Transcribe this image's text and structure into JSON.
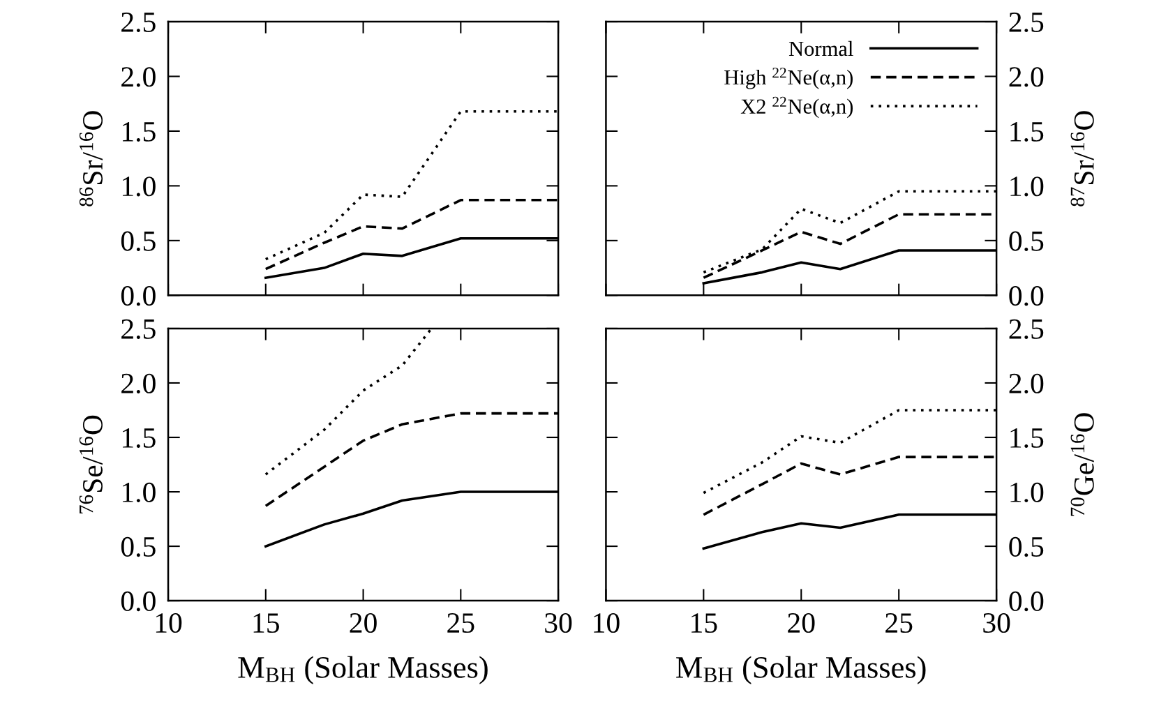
{
  "chart_data": [
    {
      "type": "line",
      "ylabel": "$^{86}$Sr/$^{16}$O",
      "x": [
        15,
        18,
        20,
        22,
        25,
        30
      ],
      "xlim": [
        10,
        30
      ],
      "xticks": [
        10,
        15,
        20,
        25,
        30
      ],
      "ylim": [
        0,
        2.5
      ],
      "yticks": [
        {
          "value": 0,
          "label": "0.0"
        },
        0.5,
        {
          "value": 1,
          "label": "1.0"
        },
        1.5,
        {
          "value": 2,
          "label": "2.0"
        },
        2.5
      ],
      "tick_labels": "y",
      "grid": false,
      "legend": false,
      "marker": "none",
      "series": [
        {
          "color": "#000000",
          "line_style": "solid",
          "values": [
            0.16,
            0.25,
            0.38,
            0.36,
            0.52,
            0.52
          ]
        },
        {
          "color": "#000000",
          "line_style": "dashed",
          "values": [
            0.24,
            0.48,
            0.63,
            0.61,
            0.87,
            0.87
          ]
        },
        {
          "color": "#000000",
          "line_style": "dotted",
          "values": [
            0.33,
            0.57,
            0.92,
            0.9,
            1.68,
            1.68
          ]
        }
      ]
    },
    {
      "type": "line",
      "ylabel": "$^{87}$Sr/$^{16}$O",
      "x": [
        15,
        18,
        20,
        22,
        25,
        30
      ],
      "xlim": [
        10,
        30
      ],
      "xticks": [
        10,
        15,
        20,
        25,
        30
      ],
      "ylim": [
        0,
        2.5
      ],
      "yticks": [
        {
          "value": 0,
          "label": "0.0"
        },
        0.5,
        {
          "value": 1,
          "label": "1.0"
        },
        1.5,
        {
          "value": 2,
          "label": "2.0"
        },
        2.5
      ],
      "tick_labels": "y",
      "grid": false,
      "legend": "top right",
      "marker": "none",
      "series": [
        {
          "name": "Normal",
          "color": "#000000",
          "line_style": "solid",
          "values": [
            0.11,
            0.21,
            0.3,
            0.24,
            0.41,
            0.41
          ]
        },
        {
          "name": "High $^{22}$Ne(α,n)",
          "color": "#000000",
          "line_style": "dashed",
          "values": [
            0.16,
            0.41,
            0.58,
            0.47,
            0.74,
            0.74
          ]
        },
        {
          "name": "X2 $^{22}$Ne(α,n)",
          "color": "#000000",
          "line_style": "dotted",
          "values": [
            0.21,
            0.42,
            0.79,
            0.66,
            0.95,
            0.95
          ]
        }
      ]
    },
    {
      "type": "line",
      "xlabel": "M$_{BH}$ (Solar Masses)",
      "ylabel": "$^{76}$Se/$^{16}$O",
      "x": [
        15,
        18,
        20,
        22,
        25,
        30
      ],
      "xlim": [
        10,
        30
      ],
      "xticks": [
        10,
        15,
        20,
        25,
        30
      ],
      "ylim": [
        0,
        2.5
      ],
      "yticks": [
        {
          "value": 0,
          "label": "0.0"
        },
        0.5,
        {
          "value": 1,
          "label": "1.0"
        },
        1.5,
        {
          "value": 2,
          "label": "2.0"
        },
        2.5
      ],
      "grid": false,
      "legend": false,
      "marker": "none",
      "series": [
        {
          "color": "#000000",
          "line_style": "solid",
          "values": [
            0.5,
            0.7,
            0.8,
            0.92,
            1.0,
            1.0
          ]
        },
        {
          "color": "#000000",
          "line_style": "dashed",
          "values": [
            0.87,
            1.23,
            1.47,
            1.62,
            1.72,
            1.72
          ]
        },
        {
          "color": "#000000",
          "line_style": "dotted",
          "x": [
            15,
            18,
            20,
            22,
            23.5
          ],
          "values": [
            1.16,
            1.57,
            1.93,
            2.16,
            2.5
          ]
        }
      ]
    },
    {
      "type": "line",
      "xlabel": "M$_{BH}$ (Solar Masses)",
      "ylabel": "$^{70}$Ge/$^{16}$O",
      "x": [
        15,
        18,
        20,
        22,
        25,
        30
      ],
      "xlim": [
        10,
        30
      ],
      "xticks": [
        10,
        15,
        20,
        25,
        30
      ],
      "ylim": [
        0,
        2.5
      ],
      "yticks": [
        {
          "value": 0,
          "label": "0.0"
        },
        0.5,
        {
          "value": 1,
          "label": "1.0"
        },
        1.5,
        {
          "value": 2,
          "label": "2.0"
        },
        2.5
      ],
      "grid": false,
      "legend": false,
      "marker": "none",
      "series": [
        {
          "color": "#000000",
          "line_style": "solid",
          "values": [
            0.48,
            0.63,
            0.71,
            0.67,
            0.79,
            0.79
          ]
        },
        {
          "color": "#000000",
          "line_style": "dashed",
          "values": [
            0.79,
            1.07,
            1.26,
            1.16,
            1.32,
            1.32
          ]
        },
        {
          "color": "#000000",
          "line_style": "dotted",
          "values": [
            0.99,
            1.27,
            1.51,
            1.45,
            1.75,
            1.75
          ]
        }
      ]
    }
  ]
}
